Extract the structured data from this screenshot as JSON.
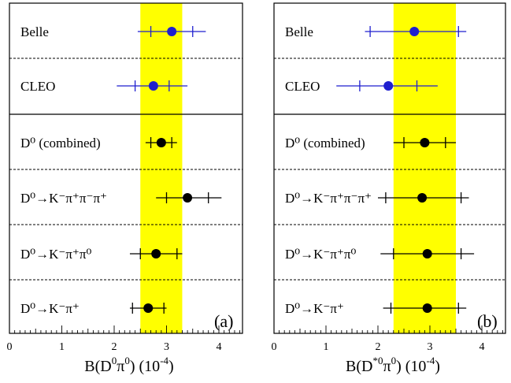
{
  "chart_data": [
    {
      "type": "scatter",
      "panel_label": "(a)",
      "xlabel_main": "B(D",
      "xlabel_sup": "0",
      "xlabel_mid": "π",
      "xlabel_sup2": "0",
      "xlabel_tail": ") (10",
      "xlabel_exp": "-4",
      "xlabel_end": ")",
      "xlim": [
        0,
        4.6
      ],
      "xticks": [
        "0",
        "1",
        "2",
        "3",
        "4"
      ],
      "band": [
        2.5,
        3.3
      ],
      "band_color": "#ffff00",
      "rows": [
        {
          "label": "Belle",
          "value": 3.1,
          "stat": [
            2.7,
            3.5
          ],
          "total": [
            2.45,
            3.75
          ],
          "color": "#1f1fcf"
        },
        {
          "label": "CLEO",
          "value": 2.75,
          "stat": [
            2.4,
            3.05
          ],
          "total": [
            2.05,
            3.4
          ],
          "color": "#1f1fcf"
        },
        {
          "label": "D⁰ (combined)",
          "value": 2.9,
          "stat": [
            2.7,
            3.1
          ],
          "total": [
            2.6,
            3.2
          ],
          "color": "#000000"
        },
        {
          "label": "D⁰→K⁻π⁺π⁻π⁺",
          "value": 3.4,
          "stat": [
            3.0,
            3.8
          ],
          "total": [
            2.8,
            4.05
          ],
          "color": "#000000"
        },
        {
          "label": "D⁰→K⁻π⁺π⁰",
          "value": 2.8,
          "stat": [
            2.5,
            3.2
          ],
          "total": [
            2.3,
            3.3
          ],
          "color": "#000000"
        },
        {
          "label": "D⁰→K⁻π⁺",
          "value": 2.65,
          "stat": [
            2.35,
            2.95
          ],
          "total": [
            2.3,
            3.0
          ],
          "color": "#000000"
        }
      ]
    },
    {
      "type": "scatter",
      "panel_label": "(b)",
      "xlabel_main": "B(D",
      "xlabel_sup": "*0",
      "xlabel_mid": "π",
      "xlabel_sup2": "0",
      "xlabel_tail": ") (10",
      "xlabel_exp": "-4",
      "xlabel_end": ")",
      "xlim": [
        0,
        4.6
      ],
      "xticks": [
        "0",
        "1",
        "2",
        "3",
        "4"
      ],
      "band": [
        2.3,
        3.5
      ],
      "band_color": "#ffff00",
      "rows": [
        {
          "label": "Belle",
          "value": 2.7,
          "stat": [
            1.85,
            3.55
          ],
          "total": [
            1.75,
            3.7
          ],
          "color": "#1f1fcf"
        },
        {
          "label": "CLEO",
          "value": 2.2,
          "stat": [
            1.65,
            2.75
          ],
          "total": [
            1.2,
            3.15
          ],
          "color": "#1f1fcf"
        },
        {
          "label": "D⁰ (combined)",
          "value": 2.9,
          "stat": [
            2.5,
            3.3
          ],
          "total": [
            2.3,
            3.5
          ],
          "color": "#000000"
        },
        {
          "label": "D⁰→K⁻π⁺π⁻π⁺",
          "value": 2.85,
          "stat": [
            2.15,
            3.6
          ],
          "total": [
            2.0,
            3.75
          ],
          "color": "#000000"
        },
        {
          "label": "D⁰→K⁻π⁺π⁰",
          "value": 2.95,
          "stat": [
            2.3,
            3.6
          ],
          "total": [
            2.05,
            3.85
          ],
          "color": "#000000"
        },
        {
          "label": "D⁰→K⁻π⁺",
          "value": 2.95,
          "stat": [
            2.25,
            3.55
          ],
          "total": [
            2.1,
            3.7
          ],
          "color": "#000000"
        }
      ]
    }
  ]
}
